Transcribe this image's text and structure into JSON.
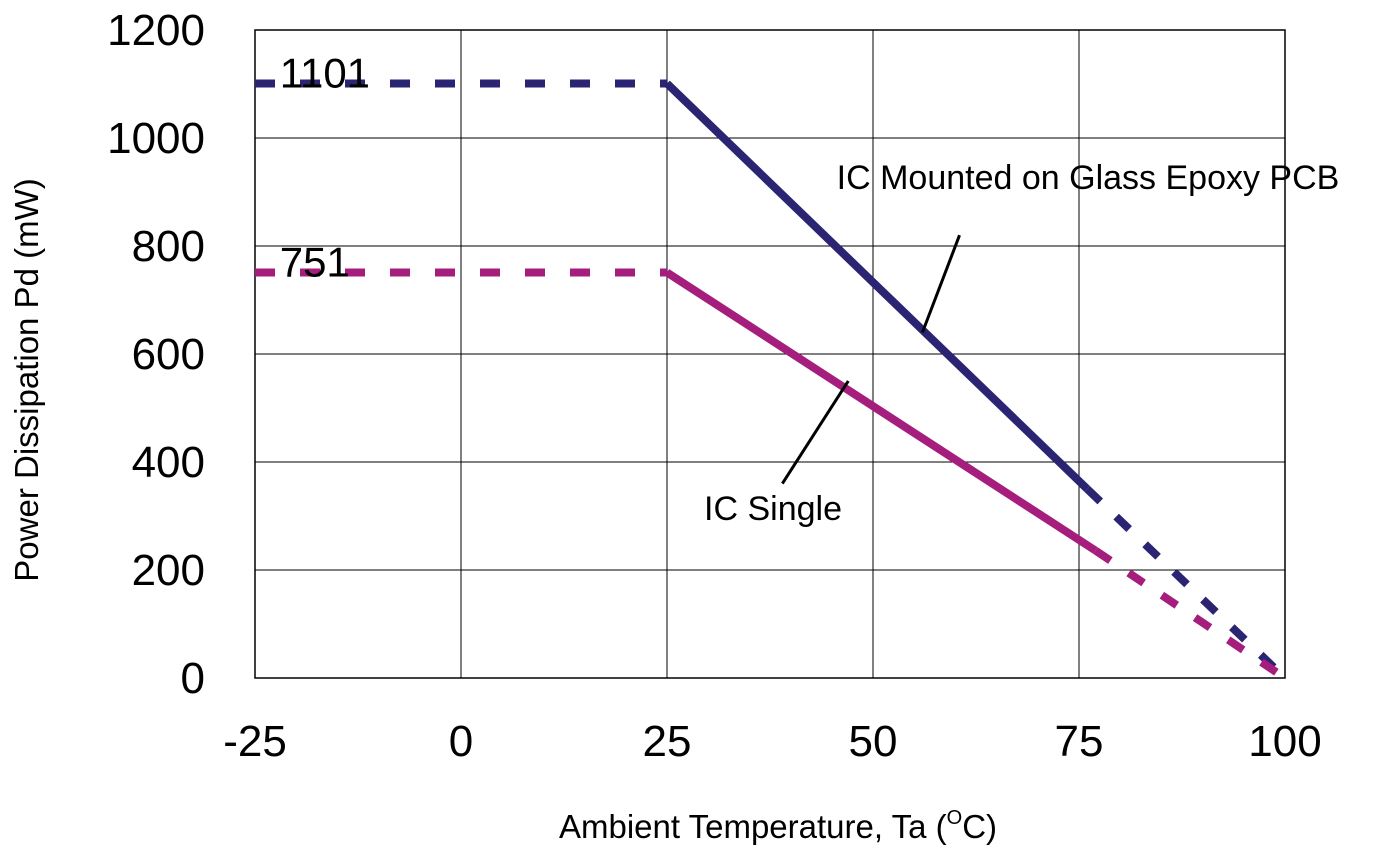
{
  "chart_data": {
    "type": "line",
    "xlabel": "Ambient Temperature, Ta (",
    "xlabel_superscript": "O",
    "xlabel_suffix": "C)",
    "ylabel": "Power Dissipation Pd (mW)",
    "xlim": [
      -25,
      100
    ],
    "ylim": [
      0,
      1200
    ],
    "x_ticks": [
      -25,
      0,
      25,
      50,
      75,
      100
    ],
    "y_ticks": [
      0,
      200,
      400,
      600,
      800,
      1000,
      1200
    ],
    "grid": true,
    "series": [
      {
        "name": "IC Mounted on Glass Epoxy PCB",
        "color": "#2b2473",
        "flat": {
          "x": [
            -25,
            25
          ],
          "y": [
            1101,
            1101
          ],
          "style": "dashed"
        },
        "derating": {
          "x": [
            25,
            76
          ],
          "y": [
            1101,
            350
          ],
          "style": "solid"
        },
        "extrapolated": {
          "x": [
            76,
            100
          ],
          "y": [
            350,
            0
          ],
          "style": "dashed"
        }
      },
      {
        "name": "IC Single",
        "color": "#a51e7d",
        "flat": {
          "x": [
            -25,
            25
          ],
          "y": [
            751,
            751
          ],
          "style": "dashed"
        },
        "derating": {
          "x": [
            25,
            77
          ],
          "y": [
            751,
            236
          ],
          "style": "solid"
        },
        "extrapolated": {
          "x": [
            77,
            100
          ],
          "y": [
            236,
            0
          ],
          "style": "dashed"
        }
      }
    ],
    "annotations": [
      {
        "text": "1101",
        "x": -22,
        "y": 1101
      },
      {
        "text": "751",
        "x": -22,
        "y": 751
      },
      {
        "text": "IC Mounted on Glass Epoxy PCB",
        "leader_from": [
          60.5,
          820
        ],
        "leader_to": [
          56,
          640
        ]
      },
      {
        "text": "IC Single",
        "leader_from": [
          39,
          360
        ],
        "leader_to": [
          47,
          550
        ]
      }
    ]
  }
}
